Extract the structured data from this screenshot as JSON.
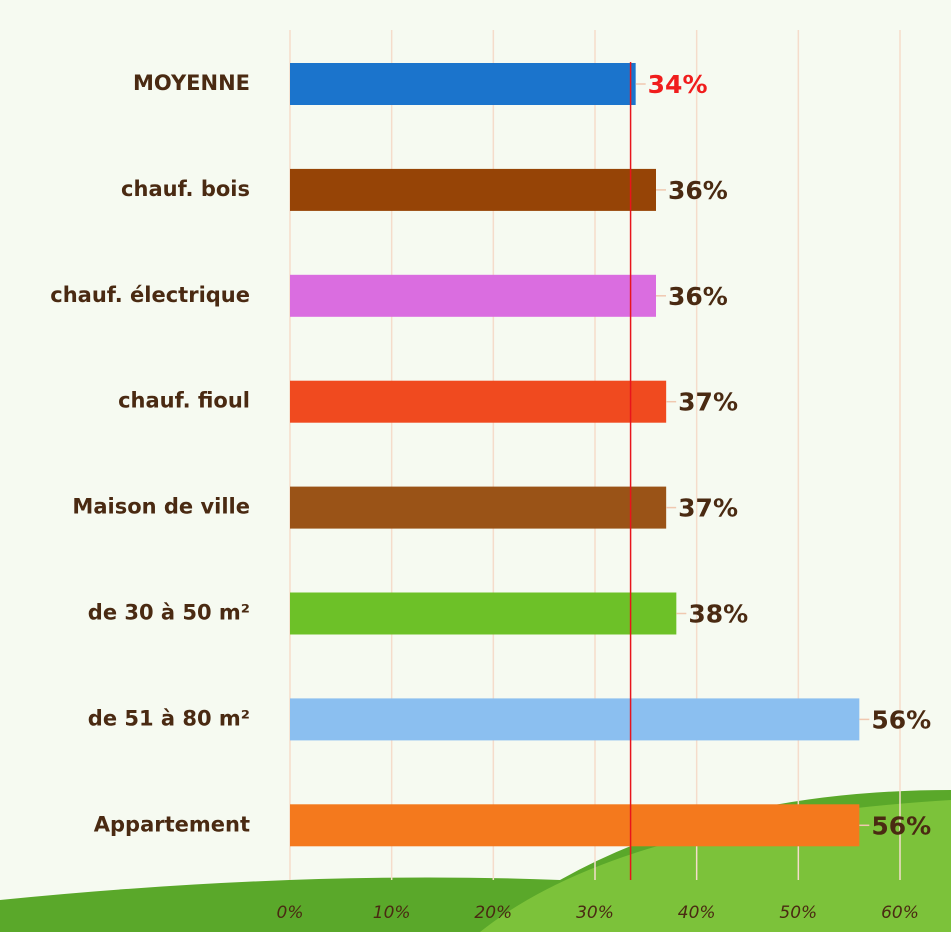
{
  "chart_data": {
    "type": "barh",
    "categories": [
      "MOYENNE",
      "chauf. bois",
      "chauf. électrique",
      "chauf. fioul",
      "Maison de ville",
      "de 30 à 50 m²",
      "de 51 à 80 m²",
      "Appartement"
    ],
    "values": [
      34,
      36,
      36,
      37,
      37,
      38,
      56,
      56
    ],
    "value_labels": [
      "34%",
      "36%",
      "36%",
      "37%",
      "37%",
      "38%",
      "56%",
      "56%"
    ],
    "colors": [
      "#1b74cc",
      "#964406",
      "#da6de0",
      "#f04a1f",
      "#9a5317",
      "#6dc128",
      "#8bbff0",
      "#f4791d"
    ],
    "xlim": [
      0,
      60
    ],
    "xticks": [
      {
        "value": 0,
        "label": "0%"
      },
      {
        "value": 10,
        "label": "10%"
      },
      {
        "value": 20,
        "label": "20%"
      },
      {
        "value": 30,
        "label": "30%"
      },
      {
        "value": 40,
        "label": "40%"
      },
      {
        "value": 50,
        "label": "50%"
      },
      {
        "value": 60,
        "label": "60%"
      }
    ],
    "reference_line": 33.5,
    "grid": true
  }
}
